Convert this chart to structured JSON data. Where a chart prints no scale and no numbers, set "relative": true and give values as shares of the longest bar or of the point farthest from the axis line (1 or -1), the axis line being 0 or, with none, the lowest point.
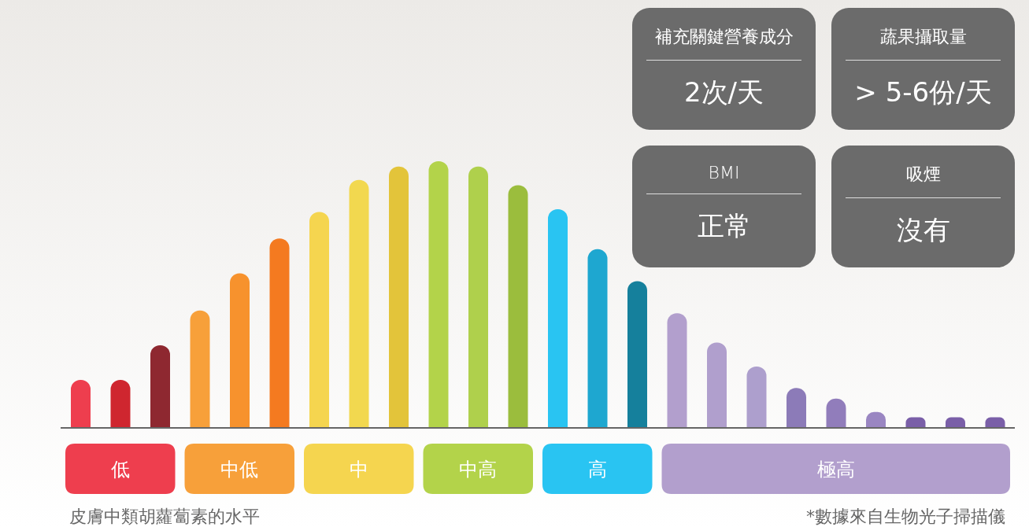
{
  "chart_data": {
    "type": "bar",
    "relative": true,
    "xlabel": "皮膚中類胡蘿蔔素的水平",
    "categories": [
      null,
      "低",
      null,
      null,
      "中低",
      null,
      null,
      "中",
      null,
      null,
      "中高",
      null,
      null,
      "高",
      null,
      null,
      null,
      null,
      null,
      "極高",
      null,
      null,
      null,
      null
    ],
    "values": [
      0.18,
      0.18,
      0.31,
      0.44,
      0.58,
      0.71,
      0.81,
      0.93,
      0.98,
      1,
      0.98,
      0.91,
      0.82,
      0.67,
      0.55,
      0.43,
      0.32,
      0.23,
      0.15,
      0.11,
      0.06,
      0.04,
      0.04,
      0.04
    ],
    "colors": [
      "#ee3e4e",
      "#cf262f",
      "#8e2830",
      "#f7a03a",
      "#f7922d",
      "#f47a20",
      "#f5d54f",
      "#f2d84f",
      "#e3c43a",
      "#b3d34a",
      "#afd04c",
      "#9bbd3d",
      "#29c4f2",
      "#1ea7d0",
      "#15809c",
      "#b29fcd",
      "#b09fcd",
      "#ad9fcd",
      "#8c7bb8",
      "#917dbb",
      "#9a86c2",
      "#7a5fa8",
      "#7a5fa8",
      "#7a5fa8"
    ],
    "annotations": [
      "補充關鍵營養成分",
      "2次/天",
      "蔬果攝取量",
      "> 5-6份/天",
      "BMI",
      "正常",
      "吸煙",
      "沒有",
      "*數據來自生物光子掃描儀"
    ],
    "grid": false,
    "legend": false
  }
}
